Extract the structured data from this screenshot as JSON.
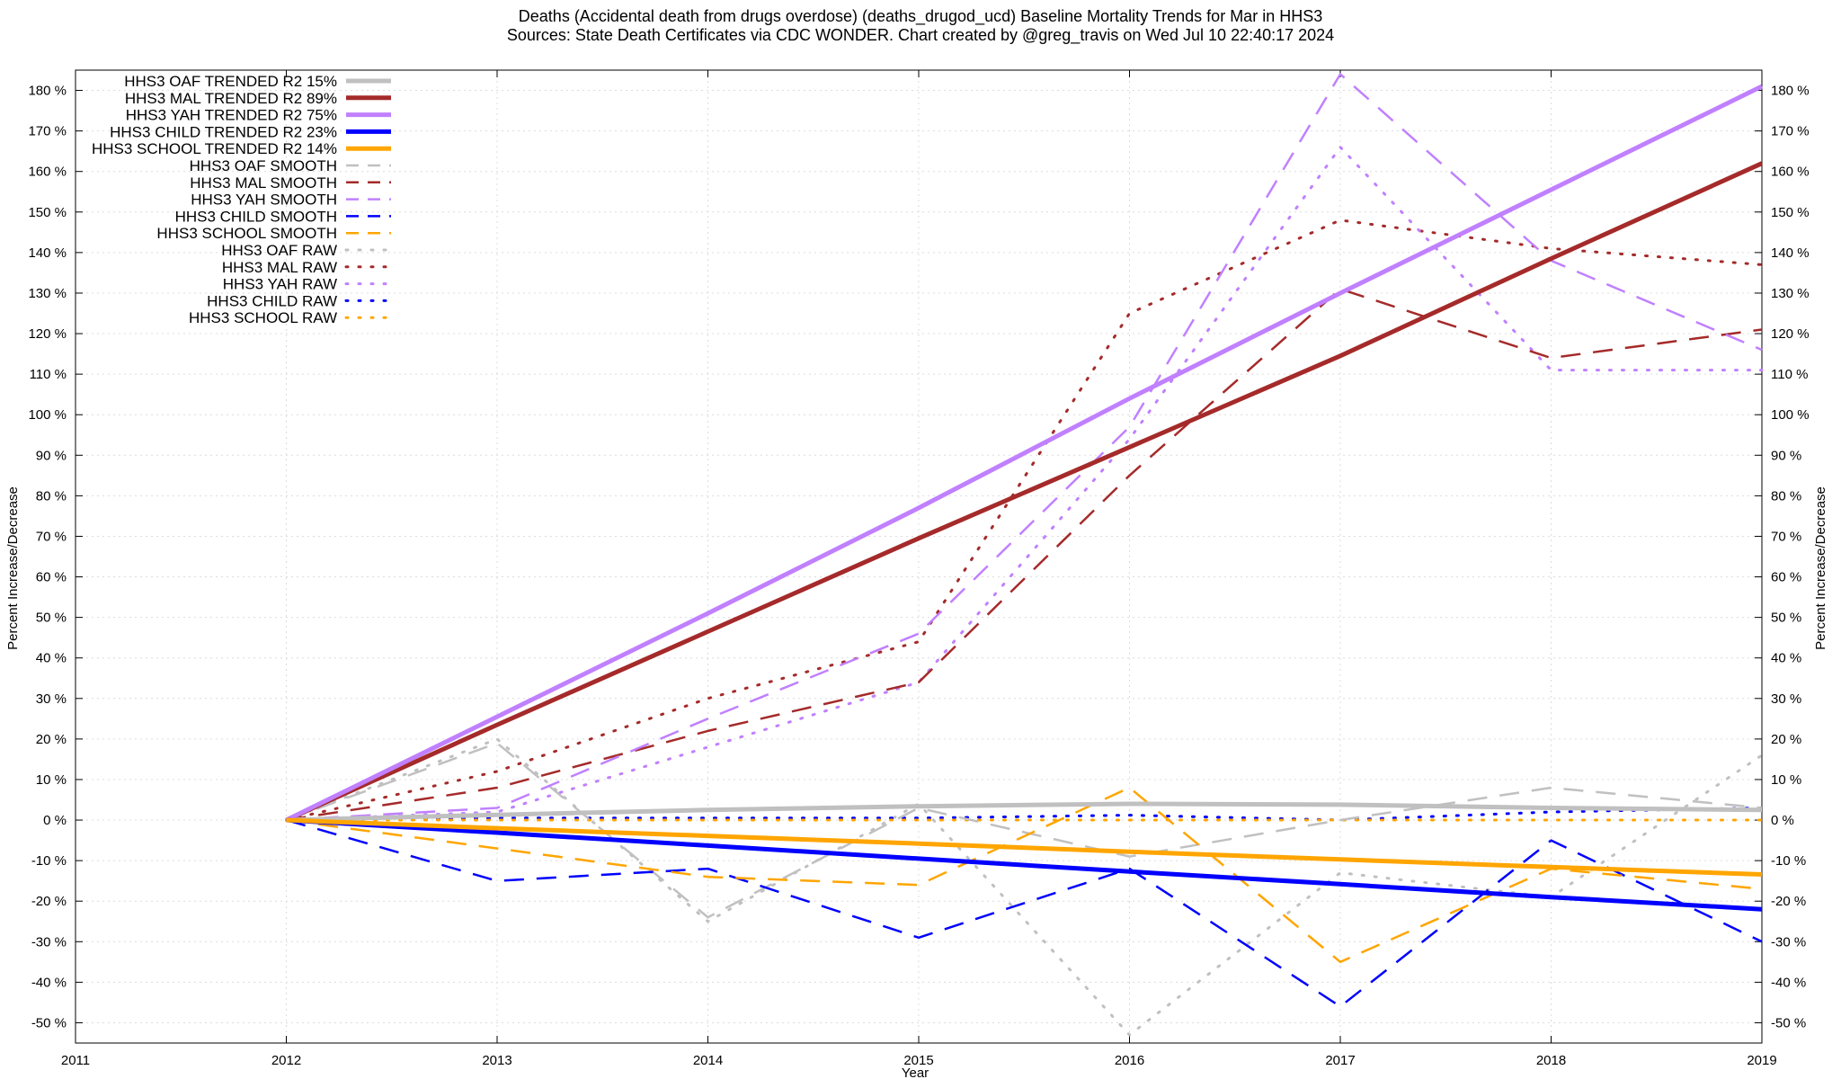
{
  "title_lines": [
    "Deaths (Accidental death from drugs overdose) (deaths_drugod_ucd)  Baseline Mortality Trends for Mar in HHS3",
    "Sources: State Death Certificates via CDC WONDER.                Chart created by @greg_travis on Wed Jul 10 22:40:17 2024"
  ],
  "chart_data": {
    "type": "line",
    "xlabel": "Year",
    "ylabel": "Percent Increase/Decrease",
    "ylabel_right": "Percent Increase/Decrease",
    "xlim": [
      2011,
      2019
    ],
    "ylim": [
      -55,
      185
    ],
    "x_ticks": [
      "2011",
      "2012",
      "2013",
      "2014",
      "2015",
      "2016",
      "2017",
      "2018",
      "2019"
    ],
    "y_ticks": [
      "-50 %",
      "-40 %",
      "-30 %",
      "-20 %",
      "-10 %",
      "0 %",
      "10 %",
      "20 %",
      "30 %",
      "40 %",
      "50 %",
      "60 %",
      "70 %",
      "80 %",
      "90 %",
      "100 %",
      "110 %",
      "120 %",
      "130 %",
      "140 %",
      "150 %",
      "160 %",
      "170 %",
      "180 %"
    ],
    "grid": true,
    "legend_position": "top-left",
    "series": [
      {
        "name": "HHS3 OAF TRENDED R2  15%",
        "style": "solid",
        "color": "#c0c0c0",
        "x": [
          2012,
          2013,
          2014,
          2015,
          2016,
          2017,
          2018,
          2019
        ],
        "values": [
          0,
          1.3,
          2.5,
          3.4,
          4.0,
          3.8,
          3.0,
          2.5
        ]
      },
      {
        "name": "HHS3 MAL TRENDED R2  89%",
        "style": "solid",
        "color": "#a52a2a",
        "x": [
          2012,
          2013,
          2014,
          2015,
          2016,
          2017,
          2018,
          2019
        ],
        "values": [
          0,
          23.5,
          46.5,
          69.5,
          92,
          114.5,
          138.5,
          162
        ]
      },
      {
        "name": "HHS3 YAH TRENDED R2  75%",
        "style": "solid",
        "color": "#c080ff",
        "x": [
          2012,
          2013,
          2014,
          2015,
          2016,
          2017,
          2018,
          2019
        ],
        "values": [
          0,
          25.5,
          51,
          77,
          104,
          130,
          155.5,
          181
        ]
      },
      {
        "name": "HHS3 CHILD TRENDED R2  23%",
        "style": "solid",
        "color": "#0000ff",
        "x": [
          2012,
          2013,
          2014,
          2015,
          2016,
          2017,
          2018,
          2019
        ],
        "values": [
          0,
          -3.1,
          -6.3,
          -9.5,
          -12.7,
          -15.8,
          -19,
          -22
        ]
      },
      {
        "name": "HHS3 SCHOOL TRENDED R2  14%",
        "style": "solid",
        "color": "#ffa500",
        "x": [
          2012,
          2013,
          2014,
          2015,
          2016,
          2017,
          2018,
          2019
        ],
        "values": [
          0,
          -2,
          -3.9,
          -5.8,
          -7.8,
          -9.7,
          -11.6,
          -13.4
        ]
      },
      {
        "name": "HHS3 OAF SMOOTH",
        "style": "dash",
        "color": "#c0c0c0",
        "x": [
          2012,
          2013,
          2014,
          2015,
          2016,
          2017,
          2018,
          2019
        ],
        "values": [
          0,
          19,
          -24,
          3,
          -9,
          0,
          8,
          3
        ]
      },
      {
        "name": "HHS3 MAL SMOOTH",
        "style": "dash",
        "color": "#a52a2a",
        "x": [
          2012,
          2013,
          2014,
          2015,
          2016,
          2017,
          2018,
          2019
        ],
        "values": [
          0,
          8,
          22,
          34,
          85,
          131,
          114,
          121
        ]
      },
      {
        "name": "HHS3 YAH SMOOTH",
        "style": "dash",
        "color": "#c080ff",
        "x": [
          2012,
          2013,
          2014,
          2015,
          2016,
          2017,
          2018,
          2019
        ],
        "values": [
          0,
          3,
          25,
          46,
          97,
          184,
          138,
          116
        ]
      },
      {
        "name": "HHS3 CHILD SMOOTH",
        "style": "dash",
        "color": "#0000ff",
        "x": [
          2012,
          2013,
          2014,
          2015,
          2016,
          2017,
          2018,
          2019
        ],
        "values": [
          0,
          -15,
          -12,
          -29,
          -12,
          -46,
          -5,
          -30
        ]
      },
      {
        "name": "HHS3 SCHOOL SMOOTH",
        "style": "dash",
        "color": "#ffa500",
        "x": [
          2012,
          2013,
          2014,
          2015,
          2016,
          2017,
          2018,
          2019
        ],
        "values": [
          0,
          -7,
          -14,
          -16,
          8,
          -35,
          -12,
          -17
        ]
      },
      {
        "name": "HHS3 OAF RAW",
        "style": "dot",
        "color": "#c0c0c0",
        "x": [
          2012,
          2013,
          2014,
          2015,
          2016,
          2017,
          2018,
          2019
        ],
        "values": [
          0,
          20,
          -25,
          4,
          -53,
          -13,
          -19,
          16
        ]
      },
      {
        "name": "HHS3 MAL RAW",
        "style": "dot",
        "color": "#a52a2a",
        "x": [
          2012,
          2013,
          2014,
          2015,
          2016,
          2017,
          2018,
          2019
        ],
        "values": [
          0,
          12,
          30,
          44,
          125,
          148,
          141,
          137
        ]
      },
      {
        "name": "HHS3 YAH RAW",
        "style": "dot",
        "color": "#c080ff",
        "x": [
          2012,
          2013,
          2014,
          2015,
          2016,
          2017,
          2018,
          2019
        ],
        "values": [
          0,
          2,
          18,
          34,
          94,
          166,
          111,
          111
        ]
      },
      {
        "name": "HHS3 CHILD RAW",
        "style": "dot",
        "color": "#0000ff",
        "x": [
          2012,
          2013,
          2014,
          2015,
          2016,
          2017,
          2018,
          2019
        ],
        "values": [
          0,
          0.5,
          0.5,
          0.5,
          1.2,
          0,
          2,
          3
        ]
      },
      {
        "name": "HHS3 SCHOOL RAW",
        "style": "dot",
        "color": "#ffa500",
        "x": [
          2012,
          2013,
          2014,
          2015,
          2016,
          2017,
          2018,
          2019
        ],
        "values": [
          0,
          0,
          0,
          0,
          0,
          0,
          0,
          0
        ]
      }
    ]
  }
}
